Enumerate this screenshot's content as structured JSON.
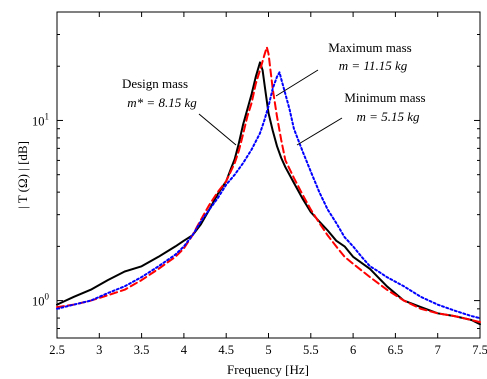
{
  "chart_data": {
    "type": "line",
    "title": "",
    "xlabel": "Frequency  [Hz]",
    "ylabel": "| T (Ω) | [dB]",
    "xlim": [
      2.5,
      7.5
    ],
    "ylim": [
      0.62,
      40
    ],
    "yscale": "log",
    "grid": false,
    "legend": "none",
    "x_ticks": [
      "2.5",
      "3",
      "3.5",
      "4",
      "4.5",
      "5",
      "5.5",
      "6",
      "6.5",
      "7",
      "7.5"
    ],
    "y_ticks": [
      {
        "base": "10",
        "exp": "0",
        "value": 1
      },
      {
        "base": "10",
        "exp": "1",
        "value": 10
      }
    ],
    "series": [
      {
        "id": "design",
        "color": "#000000",
        "dash": "solid",
        "x": [
          2.5,
          2.7,
          2.9,
          3.1,
          3.3,
          3.5,
          3.7,
          3.9,
          4.0,
          4.1,
          4.2,
          4.3,
          4.4,
          4.5,
          4.55,
          4.6,
          4.65,
          4.7,
          4.75,
          4.8,
          4.85,
          4.9,
          4.93,
          4.96,
          5.0,
          5.05,
          5.1,
          5.15,
          5.2,
          5.3,
          5.4,
          5.5,
          5.6,
          5.7,
          5.8,
          5.9,
          6.0,
          6.2,
          6.4,
          6.6,
          6.8,
          7.0,
          7.2,
          7.4,
          7.5
        ],
        "y": [
          0.95,
          1.05,
          1.15,
          1.3,
          1.45,
          1.55,
          1.75,
          2.0,
          2.15,
          2.3,
          2.65,
          3.2,
          3.9,
          4.6,
          5.3,
          6.1,
          7.5,
          9.5,
          11.5,
          14.0,
          17.5,
          21.0,
          19.0,
          15.0,
          11.0,
          8.8,
          7.2,
          6.2,
          5.5,
          4.5,
          3.7,
          3.1,
          2.75,
          2.45,
          2.15,
          2.0,
          1.75,
          1.5,
          1.2,
          1.0,
          0.92,
          0.85,
          0.82,
          0.78,
          0.74
        ]
      },
      {
        "id": "maximum",
        "color": "#ff0000",
        "dash": "dashed",
        "x": [
          2.5,
          2.7,
          2.9,
          3.1,
          3.3,
          3.5,
          3.7,
          3.9,
          4.0,
          4.1,
          4.2,
          4.3,
          4.4,
          4.5,
          4.6,
          4.65,
          4.7,
          4.75,
          4.8,
          4.85,
          4.9,
          4.95,
          4.98,
          5.0,
          5.05,
          5.1,
          5.15,
          5.2,
          5.3,
          5.4,
          5.5,
          5.6,
          5.7,
          5.8,
          5.9,
          6.0,
          6.2,
          6.4,
          6.6,
          6.8,
          7.0,
          7.2,
          7.4,
          7.5
        ],
        "y": [
          0.92,
          0.95,
          1.0,
          1.07,
          1.15,
          1.3,
          1.5,
          1.75,
          1.95,
          2.3,
          2.8,
          3.4,
          4.0,
          4.6,
          5.8,
          6.8,
          8.4,
          10.5,
          12.5,
          16.0,
          19.0,
          23.0,
          25.5,
          23.5,
          15.0,
          10.5,
          7.8,
          6.0,
          4.8,
          3.9,
          3.2,
          2.7,
          2.3,
          2.0,
          1.75,
          1.6,
          1.35,
          1.15,
          1.0,
          0.9,
          0.85,
          0.82,
          0.78,
          0.76
        ]
      },
      {
        "id": "minimum",
        "color": "#0000ff",
        "dash": "dotted",
        "x": [
          2.5,
          2.7,
          2.9,
          3.1,
          3.3,
          3.5,
          3.7,
          3.9,
          4.0,
          4.1,
          4.2,
          4.3,
          4.4,
          4.5,
          4.6,
          4.7,
          4.8,
          4.9,
          4.95,
          5.0,
          5.05,
          5.1,
          5.13,
          5.15,
          5.2,
          5.25,
          5.3,
          5.4,
          5.5,
          5.6,
          5.7,
          5.8,
          5.9,
          6.0,
          6.1,
          6.2,
          6.3,
          6.4,
          6.6,
          6.8,
          7.0,
          7.2,
          7.4,
          7.5
        ],
        "y": [
          0.9,
          0.95,
          1.0,
          1.1,
          1.2,
          1.35,
          1.55,
          1.8,
          2.0,
          2.3,
          2.75,
          3.2,
          3.7,
          4.4,
          5.0,
          5.8,
          6.9,
          8.5,
          10.0,
          12.0,
          15.0,
          17.5,
          18.5,
          17.0,
          14.0,
          11.5,
          9.0,
          6.8,
          5.2,
          4.0,
          3.2,
          2.7,
          2.25,
          2.0,
          1.75,
          1.55,
          1.45,
          1.35,
          1.2,
          1.05,
          0.95,
          0.88,
          0.82,
          0.8
        ]
      }
    ],
    "annotations": [
      {
        "id": "design",
        "line1": "Design mass",
        "line2": "m* = 8.15 kg"
      },
      {
        "id": "maximum",
        "line1": "Maximum mass",
        "line2": "m = 11.15 kg"
      },
      {
        "id": "minimum",
        "line1": "Minimum mass",
        "line2": "m = 5.15 kg"
      }
    ]
  }
}
